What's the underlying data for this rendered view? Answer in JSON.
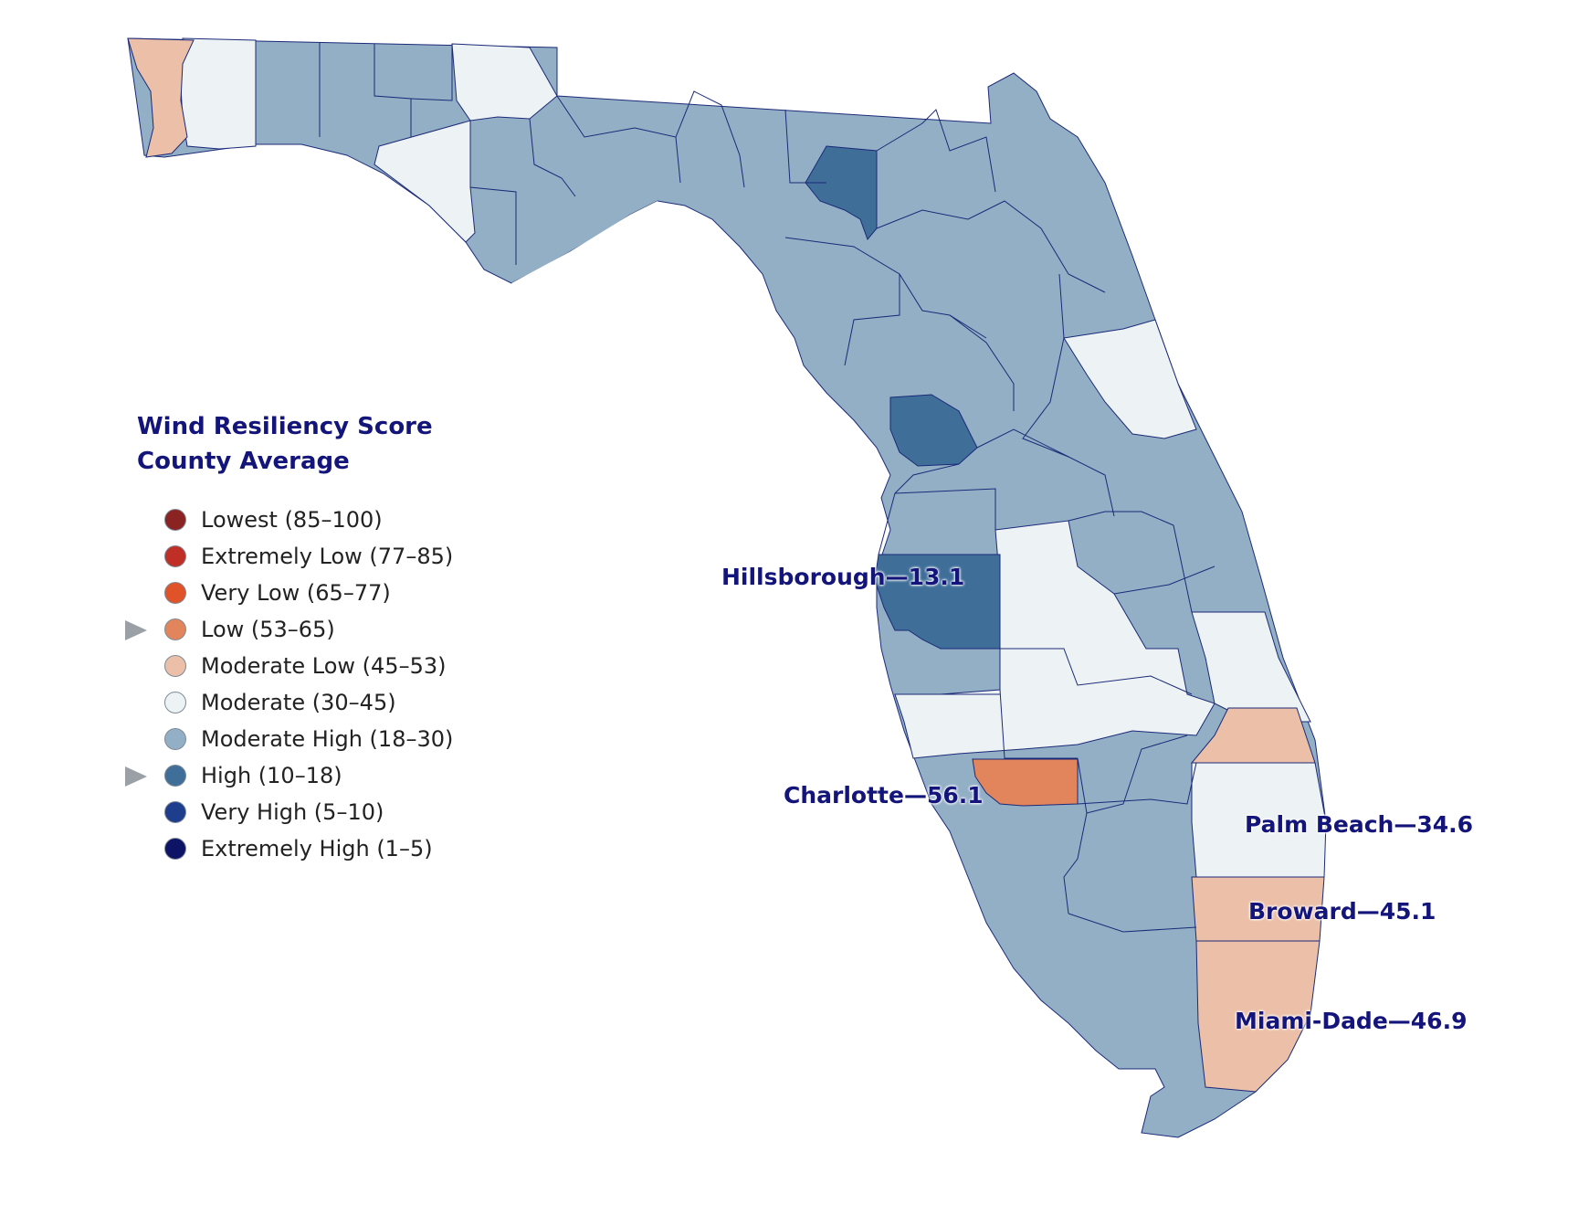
{
  "legend": {
    "title_line1": "Wind Resiliency Score",
    "title_line2": "County Average",
    "items": [
      {
        "label": "Lowest (85–100)",
        "color": "#8b2323",
        "marked": false
      },
      {
        "label": "Extremely Low (77–85)",
        "color": "#bf2f26",
        "marked": false
      },
      {
        "label": "Very Low (65–77)",
        "color": "#e05228",
        "marked": false
      },
      {
        "label": "Low (53–65)",
        "color": "#e3855c",
        "marked": true
      },
      {
        "label": "Moderate Low (45–53)",
        "color": "#ebbfa8",
        "marked": false
      },
      {
        "label": "Moderate (30–45)",
        "color": "#edf2f5",
        "marked": false
      },
      {
        "label": "Moderate High (18–30)",
        "color": "#92afc6",
        "marked": false
      },
      {
        "label": "High (10–18)",
        "color": "#3f6f99",
        "marked": true
      },
      {
        "label": "Very High (5–10)",
        "color": "#1e3d8c",
        "marked": false
      },
      {
        "label": "Extremely High (1–5)",
        "color": "#0d1466",
        "marked": false
      }
    ]
  },
  "callouts": {
    "hillsborough": "Hillsborough—13.1",
    "charlotte": "Charlotte—56.1",
    "palm_beach": "Palm Beach—34.6",
    "broward": "Broward—45.1",
    "miami_dade": "Miami-Dade—46.9"
  },
  "colors": {
    "moderate_high": "#92afc6",
    "high": "#3f6f99",
    "moderate": "#edf2f5",
    "moderate_low": "#ebbfa8",
    "low": "#e3855c",
    "border": "#1b2a78"
  }
}
